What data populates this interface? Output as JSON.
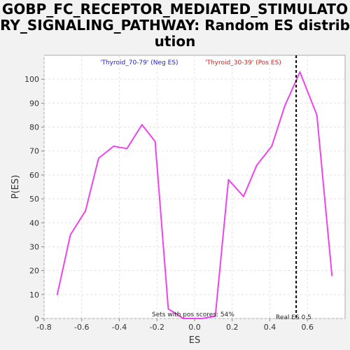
{
  "chart_data": {
    "type": "line",
    "title": "GOBP_FC_RECEPTOR_MEDIATED_STIMULATORY_SIGNALING_PATHWAY: Random ES distribution",
    "xlabel": "ES",
    "ylabel": "P(ES)",
    "xlim": [
      -0.8,
      0.8
    ],
    "ylim": [
      0,
      110
    ],
    "x_ticks": [
      "-0.8",
      "-0.6",
      "-0.4",
      "-0.2",
      "0.0",
      "0.2",
      "0.4",
      "0.6"
    ],
    "y_ticks": [
      "0",
      "10",
      "20",
      "30",
      "40",
      "50",
      "60",
      "70",
      "80",
      "90",
      "100"
    ],
    "grid": true,
    "series": [
      {
        "color": "#ee44ee",
        "x": [
          -0.73,
          -0.66,
          -0.58,
          -0.51,
          -0.43,
          -0.36,
          -0.28,
          -0.21,
          -0.14,
          -0.06,
          0.04,
          0.11,
          0.18,
          0.26,
          0.33,
          0.41,
          0.48,
          0.56,
          0.65,
          0.73
        ],
        "y": [
          10,
          35,
          45,
          67,
          72,
          71,
          81,
          74,
          4,
          0,
          0,
          1,
          58,
          51,
          64,
          72,
          89,
          103,
          85,
          18
        ]
      }
    ],
    "neg_label": {
      "text": "'Thyroid_70-79' (Neg ES)",
      "color": "#2222cc"
    },
    "pos_label": {
      "text": "'Thyroid_30-39' (Pos ES)",
      "color": "#cc2222"
    },
    "real_es": {
      "value": 0.54,
      "label": "Real ES 0.5"
    },
    "annotation": "Sets with pos scores: 54%"
  }
}
